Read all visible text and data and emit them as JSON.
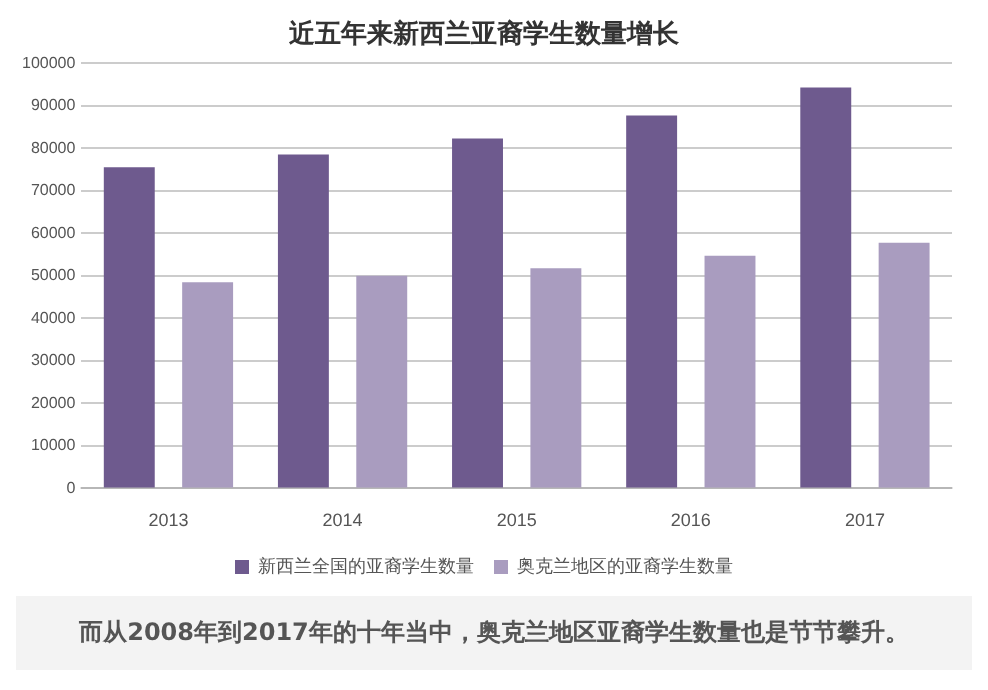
{
  "chart_data": {
    "type": "bar",
    "title": "近五年来新西兰亚裔学生数量增长",
    "categories": [
      "2013",
      "2014",
      "2015",
      "2016",
      "2017"
    ],
    "series": [
      {
        "name": "新西兰全国的亚裔学生数量",
        "color": "#6e5a8e",
        "values": [
          75500,
          78500,
          82300,
          87700,
          94300
        ]
      },
      {
        "name": "奥克兰地区的亚裔学生数量",
        "color": "#a99cbf",
        "values": [
          48500,
          50000,
          51800,
          54700,
          57800
        ]
      }
    ],
    "ylim": [
      0,
      100000
    ],
    "yticks": [
      0,
      10000,
      20000,
      30000,
      40000,
      50000,
      60000,
      70000,
      80000,
      90000,
      100000
    ],
    "grid": "y",
    "legend": "bottom",
    "annotations": [
      "而从2008年到2017年的十年当中，奥克兰地区亚裔学生数量也是节节攀升。"
    ]
  }
}
